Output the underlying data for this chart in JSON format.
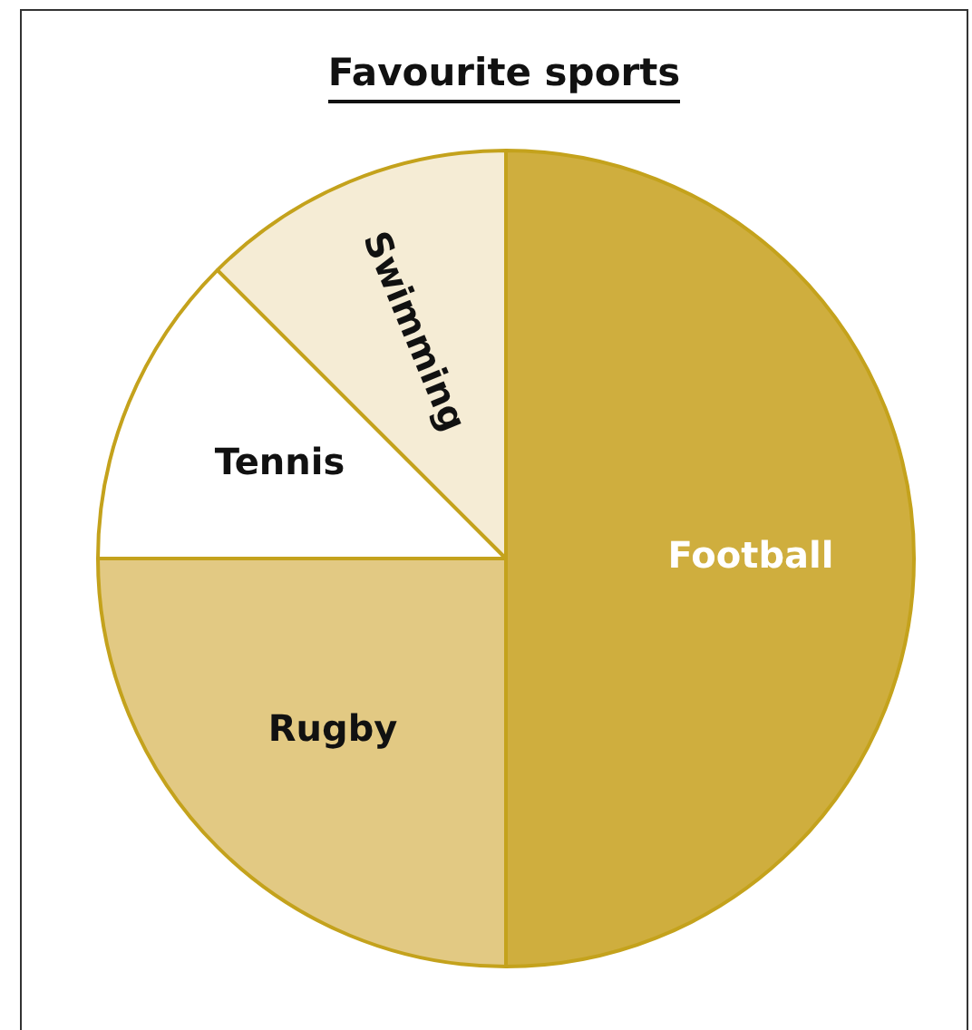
{
  "chart_data": {
    "type": "pie",
    "title": "Favourite sports",
    "categories": [
      "Football",
      "Rugby",
      "Tennis",
      "Swimming"
    ],
    "values": [
      50,
      25,
      12.5,
      12.5
    ],
    "colors": [
      "#cfae3e",
      "#e2c983",
      "#ffffff",
      "#f5ecd5"
    ],
    "legend": false
  }
}
